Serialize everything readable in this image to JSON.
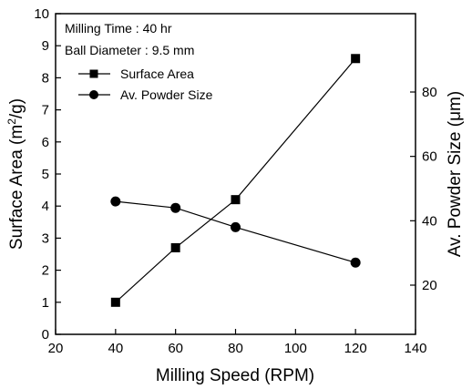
{
  "chart_data": {
    "type": "line",
    "title": "",
    "xlabel": "Milling Speed (RPM)",
    "ylabel_left": "Surface Area (m2/g)",
    "ylabel_left_base": "Surface Area (m",
    "ylabel_left_sup": "2",
    "ylabel_left_tail": "/g)",
    "ylabel_right": "Av. Powder Size (μm)",
    "xlim": [
      20,
      140
    ],
    "ylim_left": [
      0,
      10
    ],
    "ylim_right_ticks": [
      20,
      40,
      60,
      80
    ],
    "x_ticks": [
      20,
      40,
      60,
      80,
      100,
      120,
      140
    ],
    "y_left_ticks": [
      0,
      1,
      2,
      3,
      4,
      5,
      6,
      7,
      8,
      9,
      10
    ],
    "annotations": [
      "Milling Time : 40 hr",
      "Ball Diameter : 9.5 mm"
    ],
    "legend_position": "top-left",
    "series": [
      {
        "name": "Surface Area",
        "axis": "left",
        "marker": "square",
        "x": [
          40,
          60,
          80,
          120
        ],
        "values": [
          1.0,
          2.7,
          4.2,
          8.6
        ]
      },
      {
        "name": "Av. Powder Size",
        "axis": "right",
        "marker": "circle",
        "x": [
          40,
          60,
          80,
          120
        ],
        "values": [
          46,
          44,
          38,
          27
        ]
      }
    ]
  }
}
